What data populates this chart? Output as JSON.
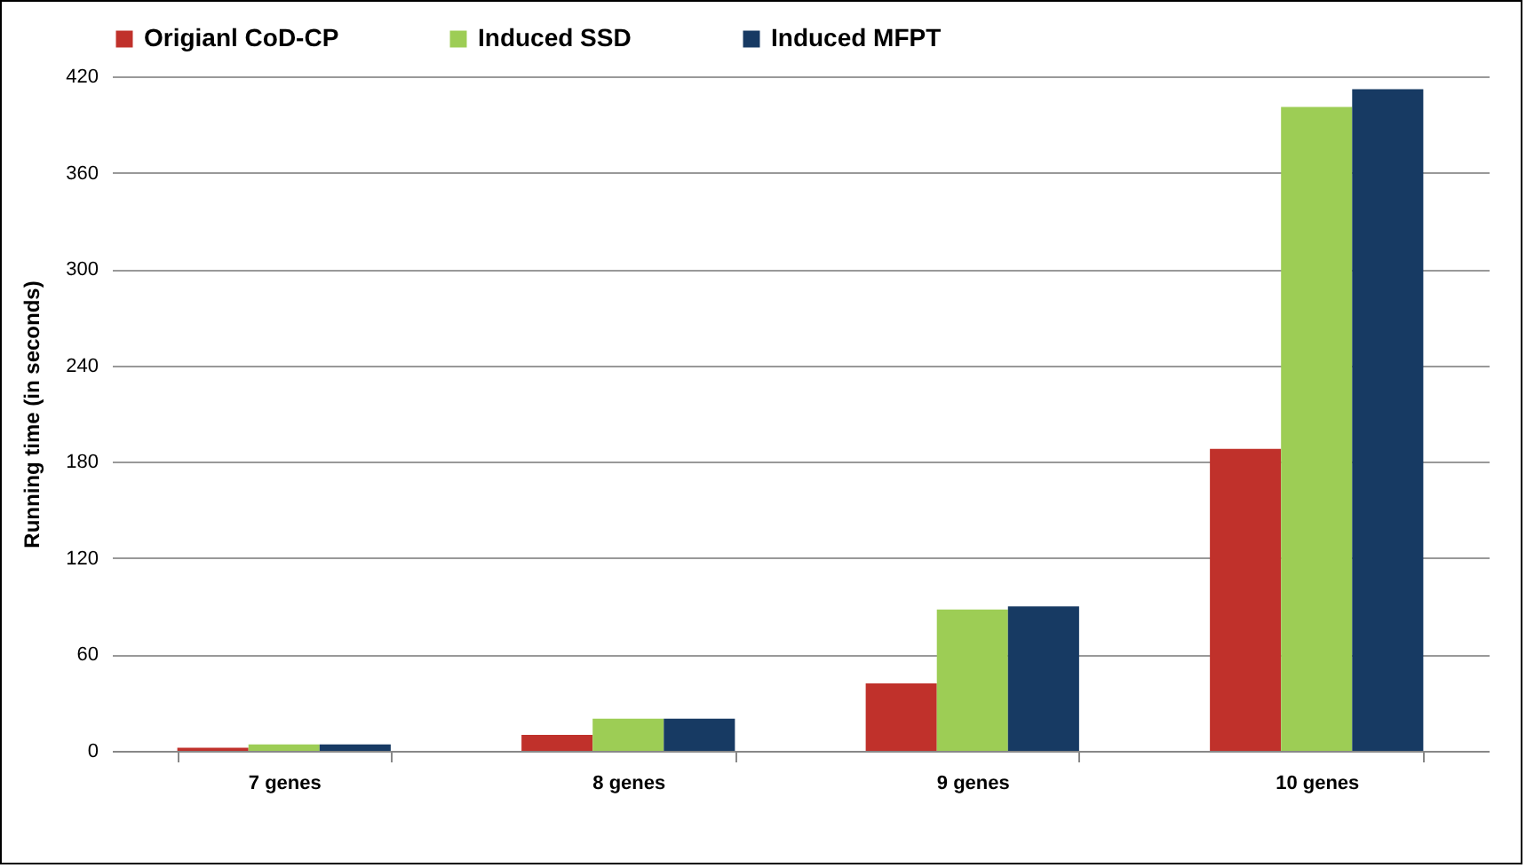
{
  "chart_data": {
    "type": "bar",
    "ylabel": "Running time (in seconds)",
    "categories": [
      "7 genes",
      "8 genes",
      "9 genes",
      "10 genes"
    ],
    "series": [
      {
        "name": "Origianl CoD-CP",
        "color": "#c0312b",
        "values": [
          2,
          10,
          42,
          188
        ]
      },
      {
        "name": "Induced SSD",
        "color": "#9dcd55",
        "values": [
          4,
          20,
          88,
          401
        ]
      },
      {
        "name": "Induced MFPT",
        "color": "#173a63",
        "values": [
          4,
          20,
          90,
          412
        ]
      }
    ],
    "ylim": [
      0,
      420
    ],
    "yticks": [
      0,
      60,
      120,
      180,
      240,
      300,
      360,
      420
    ],
    "grid": "y",
    "legend": "top"
  }
}
